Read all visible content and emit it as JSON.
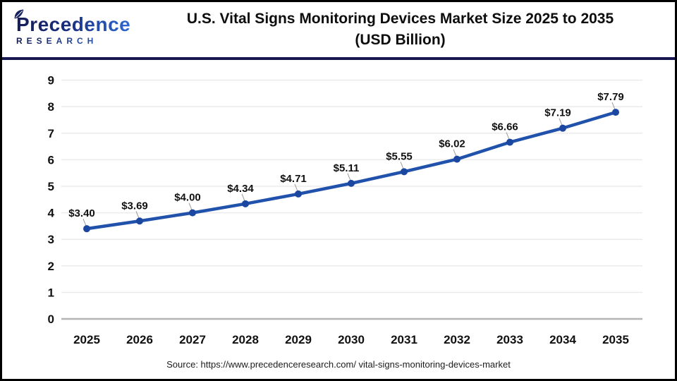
{
  "header": {
    "logo": {
      "name": "Precedence",
      "subtitle": "RESEARCH",
      "leaf_icon": "leaf",
      "brand_navy": "#1a2368",
      "brand_blue": "#2f6bd6"
    },
    "title_line1": "U.S. Vital Signs Monitoring Devices Market Size 2025 to 2035",
    "title_line2": "(USD Billion)"
  },
  "chart_data": {
    "type": "line",
    "title": "U.S. Vital Signs Monitoring Devices Market Size 2025 to 2035 (USD Billion)",
    "categories": [
      "2025",
      "2026",
      "2027",
      "2028",
      "2029",
      "2030",
      "2031",
      "2032",
      "2033",
      "2034",
      "2035"
    ],
    "values": [
      3.4,
      3.69,
      4.0,
      4.34,
      4.71,
      5.11,
      5.55,
      6.02,
      6.66,
      7.19,
      7.79
    ],
    "point_labels": [
      "$3.40",
      "$3.69",
      "$4.00",
      "$4.34",
      "$4.71",
      "$5.11",
      "$5.55",
      "$6.02",
      "$6.66",
      "$7.19",
      "$7.79"
    ],
    "xlabel": "",
    "ylabel": "",
    "ylim": [
      0,
      9
    ],
    "ytick_step": 1,
    "yticks": [
      "0",
      "1",
      "2",
      "3",
      "4",
      "5",
      "6",
      "7",
      "8",
      "9"
    ],
    "grid": true,
    "legend": "none",
    "line_color": "#2051ab",
    "marker_color": "#1c47a0",
    "grid_color": "#ebebeb",
    "axis_line_color": "#b5b5b5",
    "label_color": "#111111",
    "leader_line_color": "#9a9a9a"
  },
  "footer": {
    "source": "Source: https://www.precedenceresearch.com/ vital-signs-monitoring-devices-market"
  },
  "colors": {
    "frame_border": "#000000",
    "header_divider": "#161650",
    "background": "#ffffff",
    "title_text": "#0d0d0d"
  }
}
